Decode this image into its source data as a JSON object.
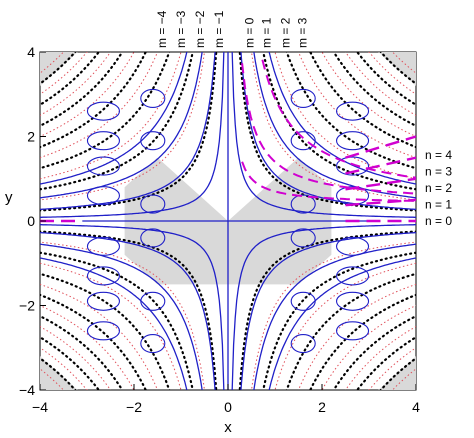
{
  "chart_data": {
    "type": "line",
    "xlabel": "x",
    "ylabel": "y",
    "xlim": [
      -4,
      4
    ],
    "ylim": [
      -4,
      4
    ],
    "xticks": [
      -4,
      -2,
      0,
      2,
      4
    ],
    "yticks": [
      -4,
      -2,
      0,
      2,
      4
    ],
    "xtick_labels": [
      "−4",
      "−2",
      "0",
      "2",
      "4"
    ],
    "ytick_labels": [
      "−4",
      "−2",
      "0",
      "2",
      "4"
    ],
    "m_labels": [
      "m = −4",
      "m = −3",
      "m = −2",
      "m = −1",
      "m = 0",
      "m = 1",
      "m = 2",
      "m = 3"
    ],
    "n_labels": [
      "n = 4",
      "n = 3",
      "n = 2",
      "n = 1",
      "n = 0"
    ],
    "grid": false,
    "series": [
      {
        "style": "red-dotted",
        "description_values": "hyperbolas x*y = c",
        "c_values": [
          -14,
          -12,
          -10,
          -8,
          -6,
          -4,
          -2,
          0,
          2,
          4,
          6,
          8,
          10,
          12,
          14
        ]
      },
      {
        "style": "black-dotted",
        "description_values": "hyperbolas x*y = c",
        "c_values": [
          -13,
          -11,
          -9,
          -7,
          -5,
          -3,
          -1,
          1,
          3,
          5,
          7,
          9,
          11,
          13
        ]
      },
      {
        "style": "blue-solid",
        "c_values": [
          -3.5,
          -2.2,
          -1.1,
          -0.35,
          0,
          0.35,
          1.1,
          2.2,
          3.5
        ]
      },
      {
        "style": "magenta-dashed",
        "n_values": [
          0,
          1,
          2,
          3,
          4
        ],
        "y_at_x4": [
          0,
          0.5,
          1,
          1.5,
          2
        ]
      }
    ],
    "shaded_regions": [
      {
        "name": "central-bowtie",
        "vertices": [
          [
            0,
            0
          ],
          [
            1.5,
            1.5
          ],
          [
            2.2,
            0.8
          ],
          [
            2.2,
            -0.8
          ],
          [
            1.5,
            -1.5
          ],
          [
            -1.5,
            -1.5
          ],
          [
            -2.2,
            -0.8
          ],
          [
            -2.2,
            0.8
          ],
          [
            -1.5,
            1.5
          ]
        ]
      },
      {
        "name": "upper-left-wedge",
        "vertices": [
          [
            -4,
            4
          ],
          [
            -4,
            3.2
          ],
          [
            -3.2,
            4
          ]
        ]
      },
      {
        "name": "upper-right-wedge",
        "vertices": [
          [
            4,
            4
          ],
          [
            4,
            3.2
          ],
          [
            3.2,
            4
          ]
        ]
      },
      {
        "name": "lower-left-wedge",
        "vertices": [
          [
            -4,
            -4
          ],
          [
            -4,
            -3.2
          ],
          [
            -3.2,
            -4
          ]
        ]
      },
      {
        "name": "lower-right-wedge",
        "vertices": [
          [
            4,
            -4
          ],
          [
            4,
            -3.2
          ],
          [
            3.2,
            -4
          ]
        ]
      }
    ],
    "colors": {
      "red_dotted": "#e0505a",
      "black_dotted": "#000000",
      "blue_solid": "#2020c8",
      "magenta_dashed": "#d000d0",
      "shade": "#d9d9d9",
      "frame": "#000000"
    }
  }
}
